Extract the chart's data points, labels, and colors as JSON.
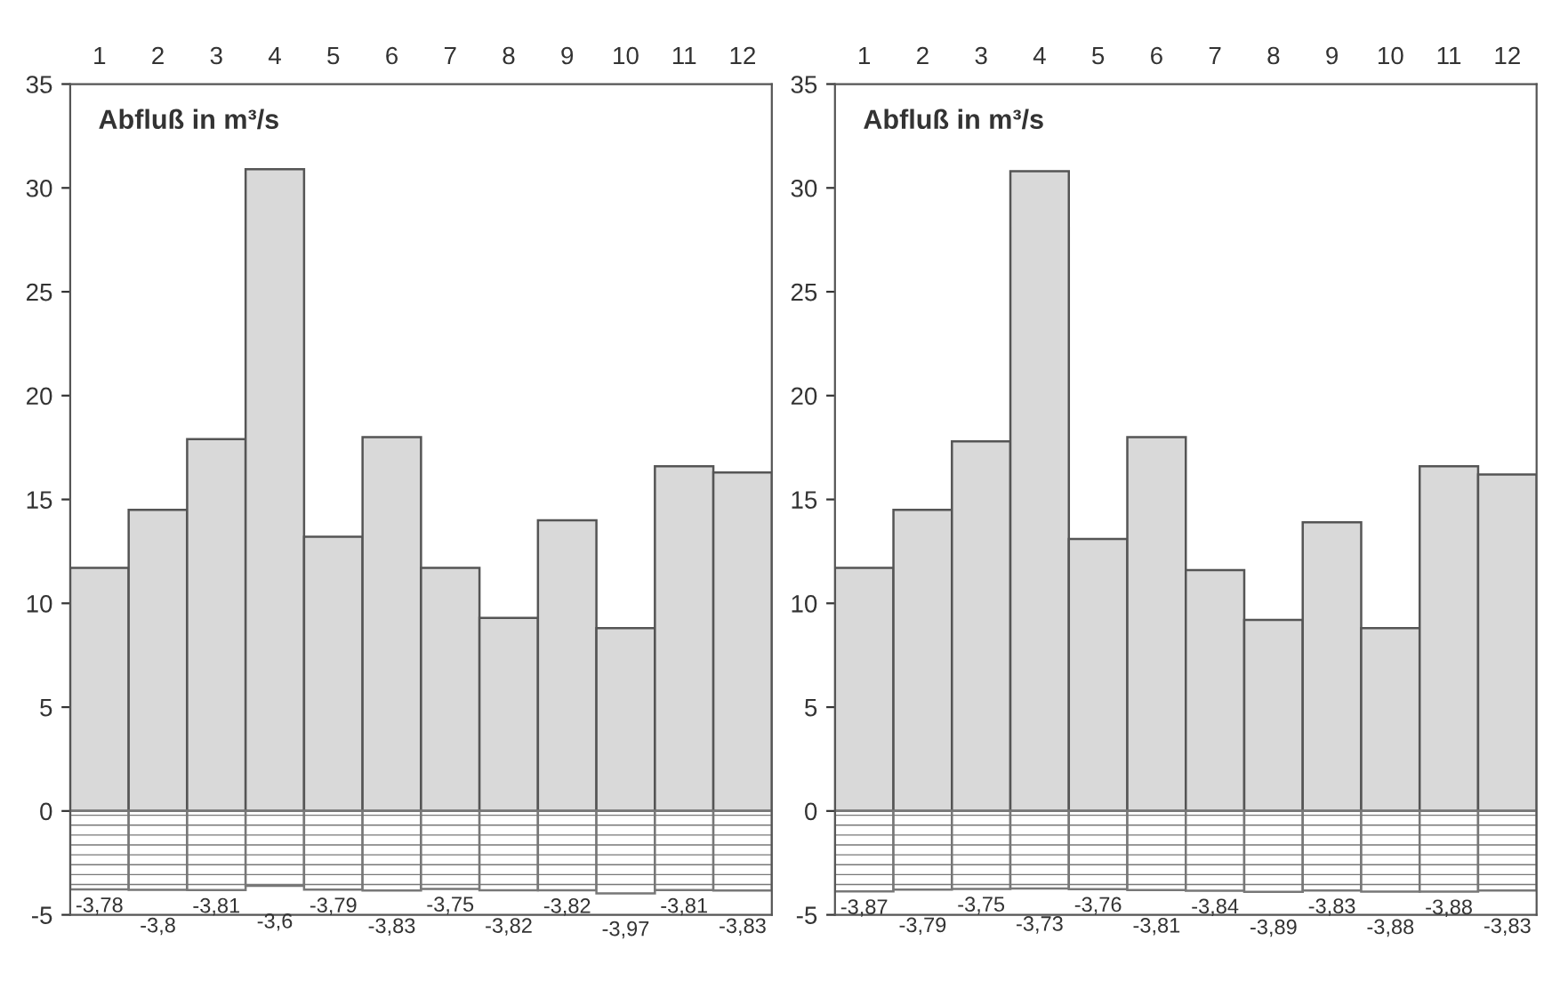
{
  "chart_data": [
    {
      "type": "bar",
      "title": "Abfluß in m³/s",
      "stacked": true,
      "categories": [
        "1",
        "2",
        "3",
        "4",
        "5",
        "6",
        "7",
        "8",
        "9",
        "10",
        "11",
        "12"
      ],
      "ylim": [
        -5,
        35
      ],
      "yticks": [
        -5,
        0,
        5,
        10,
        15,
        20,
        25,
        30,
        35
      ],
      "series": [
        {
          "color": "#d9d9d9",
          "values": [
            11.7,
            14.5,
            17.9,
            30.9,
            13.2,
            18.0,
            11.7,
            9.3,
            14.0,
            8.8,
            16.6,
            16.3
          ]
        },
        {
          "color": "#777777",
          "values": [
            -3.78,
            -3.8,
            -3.81,
            -3.6,
            -3.79,
            -3.83,
            -3.75,
            -3.82,
            -3.82,
            -3.97,
            -3.81,
            -3.83
          ],
          "value_labels": [
            "-3,78",
            "-3,8",
            "-3,81",
            "-3,6",
            "-3,79",
            "-3,83",
            "-3,75",
            "-3,82",
            "-3,82",
            "-3,97",
            "-3,81",
            "-3,83"
          ]
        }
      ]
    },
    {
      "type": "bar",
      "title": "Abfluß in m³/s",
      "stacked": true,
      "categories": [
        "1",
        "2",
        "3",
        "4",
        "5",
        "6",
        "7",
        "8",
        "9",
        "10",
        "11",
        "12"
      ],
      "ylim": [
        -5,
        35
      ],
      "yticks": [
        -5,
        0,
        5,
        10,
        15,
        20,
        25,
        30,
        35
      ],
      "series": [
        {
          "color": "#d9d9d9",
          "values": [
            11.7,
            14.5,
            17.8,
            30.8,
            13.1,
            18.0,
            11.6,
            9.2,
            13.9,
            8.8,
            16.6,
            16.2
          ]
        },
        {
          "color": "#777777",
          "values": [
            -3.87,
            -3.79,
            -3.75,
            -3.73,
            -3.76,
            -3.81,
            -3.84,
            -3.89,
            -3.83,
            -3.88,
            -3.88,
            -3.83
          ],
          "value_labels": [
            "-3,87",
            "-3,79",
            "-3,75",
            "-3,73",
            "-3,76",
            "-3,81",
            "-3,84",
            "-3,89",
            "-3,83",
            "-3,88",
            "-3,88",
            "-3,83"
          ]
        }
      ]
    }
  ]
}
